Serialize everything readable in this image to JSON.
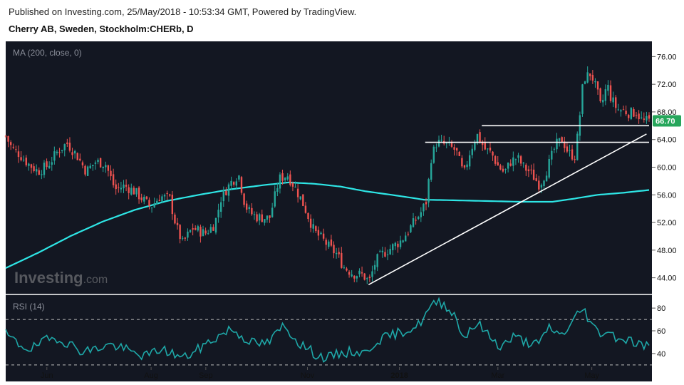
{
  "header": {
    "published": "Published on Investing.com, 25/May/2018 - 10:53:34 GMT, Powered by TradingView.",
    "instrument": "Cherry AB, Sweden, Stockholm:CHERb, D"
  },
  "watermark": {
    "text_bold": "Investing",
    "text_light": ".com"
  },
  "colors": {
    "background": "#131722",
    "up": "#26a69a",
    "down": "#ef5350",
    "ma": "#2ee6e6",
    "rsi": "#1ea8a8",
    "trend": "#ffffff",
    "price_badge": "#26a65b",
    "axis_text": "#111111"
  },
  "chart_data": [
    {
      "type": "candlestick",
      "indicator_label": "MA (200, close, 0)",
      "ylim": [
        42,
        78
      ],
      "y_ticks": [
        44,
        48,
        52,
        56,
        60,
        64,
        68,
        72,
        76
      ],
      "y_tick_labels": [
        "44.00",
        "48.00",
        "52.00",
        "56.00",
        "60.00",
        "64.00",
        "68.00",
        "72.00",
        "76.00"
      ],
      "last_price_label": "66.70",
      "last_price": 66.7,
      "x_ticks": [
        "Jun",
        "Aug",
        "Sep",
        "Nov",
        "2018",
        "Mar",
        "May"
      ],
      "x_tick_pos": [
        0.064,
        0.226,
        0.311,
        0.469,
        0.612,
        0.765,
        0.911
      ],
      "anchors": [
        [
          0,
          64.5
        ],
        [
          0.01,
          62.7
        ],
        [
          0.02,
          62.0
        ],
        [
          0.035,
          60.5
        ],
        [
          0.05,
          59.4
        ],
        [
          0.065,
          60.2
        ],
        [
          0.08,
          62.2
        ],
        [
          0.095,
          63.5
        ],
        [
          0.11,
          61.8
        ],
        [
          0.125,
          59.4
        ],
        [
          0.14,
          60.8
        ],
        [
          0.155,
          60.5
        ],
        [
          0.17,
          56.8
        ],
        [
          0.185,
          57.3
        ],
        [
          0.2,
          56.5
        ],
        [
          0.215,
          55.2
        ],
        [
          0.225,
          54.2
        ],
        [
          0.24,
          55.8
        ],
        [
          0.255,
          55.4
        ],
        [
          0.265,
          51.4
        ],
        [
          0.275,
          49.0
        ],
        [
          0.29,
          51.2
        ],
        [
          0.31,
          50.4
        ],
        [
          0.325,
          51.8
        ],
        [
          0.335,
          55.6
        ],
        [
          0.35,
          57.8
        ],
        [
          0.362,
          59.0
        ],
        [
          0.372,
          54.5
        ],
        [
          0.38,
          53.4
        ],
        [
          0.39,
          52.8
        ],
        [
          0.41,
          52.6
        ],
        [
          0.425,
          58.3
        ],
        [
          0.438,
          58.9
        ],
        [
          0.45,
          57.0
        ],
        [
          0.46,
          55.2
        ],
        [
          0.468,
          53.4
        ],
        [
          0.48,
          50.6
        ],
        [
          0.492,
          49.6
        ],
        [
          0.505,
          48.2
        ],
        [
          0.515,
          47.4
        ],
        [
          0.525,
          45.6
        ],
        [
          0.54,
          44.6
        ],
        [
          0.555,
          44.4
        ],
        [
          0.565,
          43.4
        ],
        [
          0.575,
          46.4
        ],
        [
          0.585,
          47.4
        ],
        [
          0.6,
          48.4
        ],
        [
          0.615,
          49.4
        ],
        [
          0.63,
          51.4
        ],
        [
          0.645,
          53.4
        ],
        [
          0.655,
          55.3
        ],
        [
          0.66,
          61.0
        ],
        [
          0.67,
          63.6
        ],
        [
          0.685,
          63.2
        ],
        [
          0.7,
          62.4
        ],
        [
          0.712,
          58.8
        ],
        [
          0.72,
          61.8
        ],
        [
          0.732,
          64.8
        ],
        [
          0.745,
          62.6
        ],
        [
          0.755,
          62.0
        ],
        [
          0.765,
          60.2
        ],
        [
          0.775,
          59.2
        ],
        [
          0.785,
          60.8
        ],
        [
          0.795,
          61.4
        ],
        [
          0.805,
          60.0
        ],
        [
          0.815,
          59.3
        ],
        [
          0.83,
          57.4
        ],
        [
          0.84,
          59.4
        ],
        [
          0.855,
          63.2
        ],
        [
          0.865,
          64.0
        ],
        [
          0.875,
          62.0
        ],
        [
          0.885,
          61.6
        ],
        [
          0.89,
          65.4
        ],
        [
          0.898,
          72.8
        ],
        [
          0.91,
          73.6
        ],
        [
          0.92,
          70.6
        ],
        [
          0.925,
          68.6
        ],
        [
          0.935,
          72.0
        ],
        [
          0.94,
          70.2
        ],
        [
          0.95,
          68.4
        ],
        [
          0.96,
          68.2
        ],
        [
          0.97,
          67.8
        ],
        [
          0.98,
          68.0
        ],
        [
          0.99,
          66.6
        ],
        [
          1,
          66.7
        ]
      ],
      "ma_anchors": [
        [
          0,
          45.4
        ],
        [
          0.05,
          47.6
        ],
        [
          0.1,
          50.0
        ],
        [
          0.15,
          52.1
        ],
        [
          0.2,
          53.8
        ],
        [
          0.25,
          55.1
        ],
        [
          0.3,
          56.0
        ],
        [
          0.35,
          56.8
        ],
        [
          0.4,
          57.4
        ],
        [
          0.44,
          57.8
        ],
        [
          0.48,
          57.6
        ],
        [
          0.52,
          57.2
        ],
        [
          0.56,
          56.5
        ],
        [
          0.6,
          56.0
        ],
        [
          0.65,
          55.3
        ],
        [
          0.7,
          55.2
        ],
        [
          0.75,
          55.1
        ],
        [
          0.8,
          55.0
        ],
        [
          0.85,
          55.0
        ],
        [
          0.88,
          55.4
        ],
        [
          0.92,
          56.0
        ],
        [
          0.96,
          56.3
        ],
        [
          1,
          56.7
        ]
      ],
      "trendlines": [
        {
          "from": [
            0.564,
            43.0
          ],
          "to": [
            0.996,
            64.8
          ]
        },
        {
          "from": [
            0.652,
            63.6
          ],
          "to": [
            1.0,
            63.6
          ]
        },
        {
          "from": [
            0.74,
            66.0
          ],
          "to": [
            1.0,
            66.0
          ]
        }
      ]
    },
    {
      "type": "line",
      "indicator_label": "RSI (14)",
      "ylim": [
        28,
        92
      ],
      "y_ticks": [
        40,
        60,
        80
      ],
      "y_tick_labels": [
        "40",
        "60",
        "80"
      ],
      "levels": [
        70,
        30
      ],
      "anchors": [
        [
          0,
          57
        ],
        [
          0.02,
          48
        ],
        [
          0.04,
          44
        ],
        [
          0.06,
          51
        ],
        [
          0.08,
          54
        ],
        [
          0.1,
          48
        ],
        [
          0.12,
          42
        ],
        [
          0.14,
          44
        ],
        [
          0.16,
          48
        ],
        [
          0.18,
          45
        ],
        [
          0.2,
          40
        ],
        [
          0.22,
          38
        ],
        [
          0.24,
          44
        ],
        [
          0.26,
          40
        ],
        [
          0.275,
          36
        ],
        [
          0.29,
          40
        ],
        [
          0.31,
          48
        ],
        [
          0.33,
          55
        ],
        [
          0.35,
          62
        ],
        [
          0.37,
          54
        ],
        [
          0.39,
          48
        ],
        [
          0.41,
          50
        ],
        [
          0.43,
          64
        ],
        [
          0.44,
          60
        ],
        [
          0.455,
          50
        ],
        [
          0.47,
          44
        ],
        [
          0.485,
          38
        ],
        [
          0.5,
          36
        ],
        [
          0.52,
          40
        ],
        [
          0.54,
          42
        ],
        [
          0.56,
          40
        ],
        [
          0.575,
          51
        ],
        [
          0.6,
          56
        ],
        [
          0.62,
          60
        ],
        [
          0.64,
          64
        ],
        [
          0.66,
          80
        ],
        [
          0.672,
          86
        ],
        [
          0.685,
          82
        ],
        [
          0.7,
          72
        ],
        [
          0.712,
          52
        ],
        [
          0.72,
          62
        ],
        [
          0.735,
          66
        ],
        [
          0.75,
          56
        ],
        [
          0.77,
          46
        ],
        [
          0.79,
          55
        ],
        [
          0.81,
          50
        ],
        [
          0.83,
          48
        ],
        [
          0.845,
          64
        ],
        [
          0.86,
          56
        ],
        [
          0.875,
          62
        ],
        [
          0.888,
          74
        ],
        [
          0.898,
          80
        ],
        [
          0.91,
          66
        ],
        [
          0.922,
          58
        ],
        [
          0.935,
          60
        ],
        [
          0.95,
          54
        ],
        [
          0.97,
          52
        ],
        [
          0.985,
          48
        ],
        [
          1,
          47
        ]
      ]
    }
  ]
}
